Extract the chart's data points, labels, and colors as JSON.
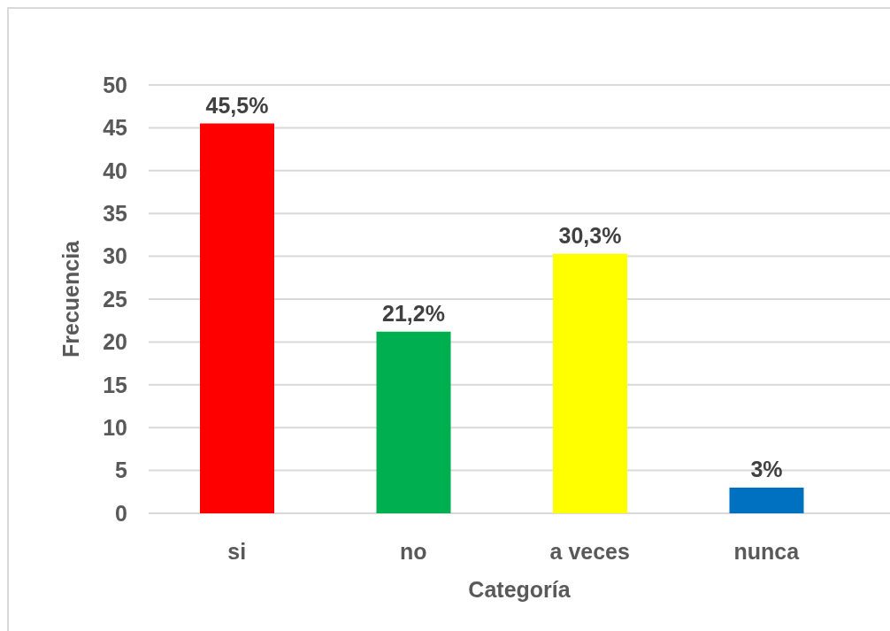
{
  "chart_data": {
    "type": "bar",
    "xlabel": "Categoría",
    "ylabel": "Frecuencia",
    "categories": [
      "si",
      "no",
      "a veces",
      "nunca"
    ],
    "values": [
      45.5,
      21.2,
      30.3,
      3
    ],
    "colors": [
      "#ff0000",
      "#00b050",
      "#ffff00",
      "#0070c0"
    ],
    "value_labels": [
      "45,5%",
      "21,2%",
      "30,3%",
      "3%"
    ],
    "ylim": [
      0,
      50
    ],
    "yticks": [
      0,
      5,
      10,
      15,
      20,
      25,
      30,
      35,
      40,
      45,
      50
    ],
    "grid": "y"
  }
}
